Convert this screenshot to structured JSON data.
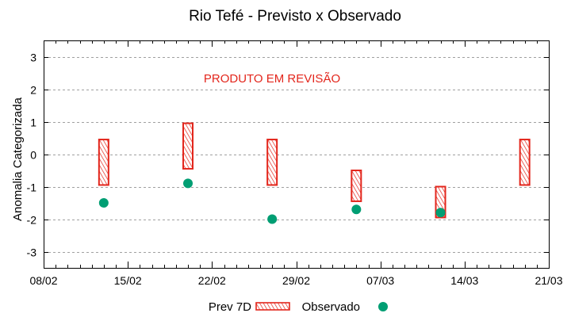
{
  "chart_data": {
    "type": "scatter",
    "title": "Rio Tefé - Previsto x Observado",
    "xlabel": "",
    "ylabel": "Anomalia Categorizada",
    "annotation": "PRODUTO EM REVISÃO",
    "x_ticks": [
      "08/02",
      "15/02",
      "22/02",
      "29/02",
      "07/03",
      "14/03",
      "21/03"
    ],
    "x_range_days": [
      0,
      42
    ],
    "x_start": "08/02",
    "y_ticks": [
      3,
      2,
      1,
      0,
      -1,
      -2,
      -3
    ],
    "ylim": [
      -3.5,
      3.5
    ],
    "grid": true,
    "legend_position": "bottom",
    "series": [
      {
        "name": "Prev 7D",
        "kind": "range-bar",
        "color": "#e3261c",
        "points": [
          {
            "date": "13/02",
            "day": 5,
            "low": -0.95,
            "high": 0.45
          },
          {
            "date": "20/02",
            "day": 12,
            "low": -0.45,
            "high": 0.95
          },
          {
            "date": "27/02",
            "day": 19,
            "low": -0.95,
            "high": 0.45
          },
          {
            "date": "05/03",
            "day": 26,
            "low": -1.45,
            "high": -0.5
          },
          {
            "date": "12/03",
            "day": 33,
            "low": -1.95,
            "high": -1.0
          },
          {
            "date": "19/03",
            "day": 40,
            "low": -0.95,
            "high": 0.45
          }
        ]
      },
      {
        "name": "Observado",
        "kind": "point",
        "color": "#009e73",
        "points": [
          {
            "date": "13/02",
            "day": 5,
            "value": -1.5
          },
          {
            "date": "20/02",
            "day": 12,
            "value": -0.9
          },
          {
            "date": "27/02",
            "day": 19,
            "value": -2.0
          },
          {
            "date": "05/03",
            "day": 26,
            "value": -1.7
          },
          {
            "date": "12/03",
            "day": 33,
            "value": -1.8
          }
        ]
      }
    ]
  },
  "legend": {
    "items": [
      {
        "label": "Prev 7D",
        "icon": "hatched-red-box"
      },
      {
        "label": "Observado",
        "icon": "green-dot"
      }
    ]
  }
}
